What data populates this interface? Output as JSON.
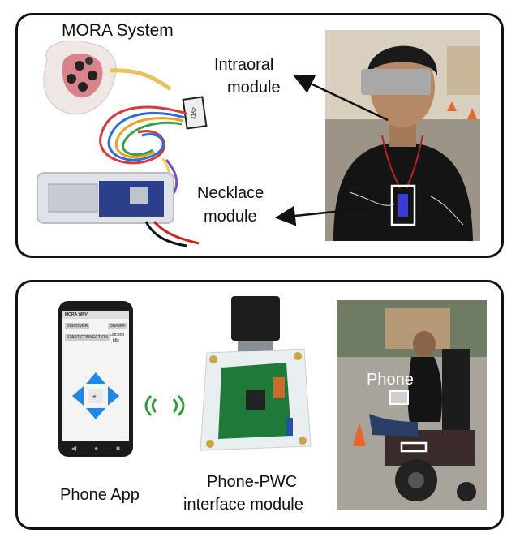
{
  "top_panel": {
    "title": "MORA System",
    "callouts": {
      "intraoral_line1": "Intraoral",
      "intraoral_line2": "module",
      "necklace_line1": "Necklace",
      "necklace_line2": "module"
    },
    "board_sticker": "1157"
  },
  "bottom_panel": {
    "phone_app_label": "Phone App",
    "interface_line1": "Phone-PWC",
    "interface_line2": "interface module",
    "phone_callout": "Phone",
    "app_screen": {
      "header": "MORA WPV",
      "discover_button": "DISCOVER",
      "onoff_button": "ON/OFF",
      "start_connection_button": "START CONNECTION",
      "option_1": "Latched",
      "option_2": "Idle"
    }
  },
  "colors": {
    "panel_border": "#111111",
    "app_dpad": "#1e88e5",
    "wireless_waves": "#2e9e3a",
    "pcb_green": "#1f7a3a",
    "arrow": "#111111"
  }
}
